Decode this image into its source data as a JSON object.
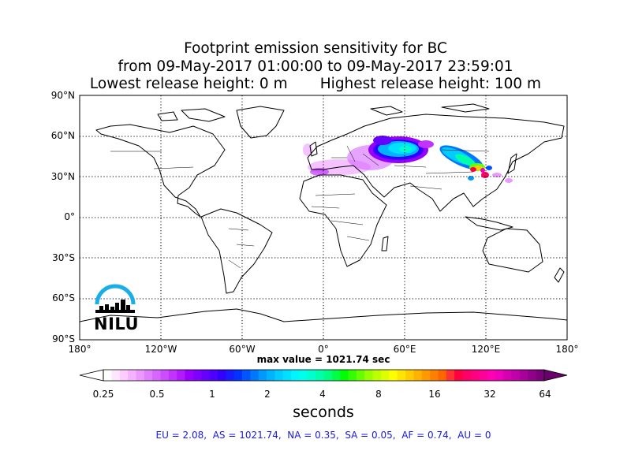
{
  "title": {
    "line1": "Footprint emission sensitivity for BC",
    "line2": "from 09-May-2017 01:00:00 to 09-May-2017 23:59:01",
    "line3": "Lowest release height: 0 m       Highest release height: 100 m"
  },
  "map": {
    "projection": "equirectangular",
    "lat_labels": [
      "90°N",
      "60°N",
      "30°N",
      "0°",
      "30°S",
      "60°S",
      "90°S"
    ],
    "lon_labels": [
      "180°",
      "120°W",
      "60°W",
      "0°",
      "60°E",
      "120°E",
      "180°"
    ],
    "grid": "dotted",
    "colors": {
      "coastline": "#000000",
      "borders": "#000000"
    }
  },
  "max_value": "max value = 1021.74 sec",
  "colorbar": {
    "tick_labels": [
      "0.25",
      "0.5",
      "1",
      "2",
      "4",
      "8",
      "16",
      "32",
      "64"
    ],
    "units": "seconds",
    "colors": [
      "#ffffff",
      "#ffe6ff",
      "#ffccff",
      "#f5b3ff",
      "#eb99ff",
      "#e080ff",
      "#d666ff",
      "#cc4dff",
      "#c233ff",
      "#b31aff",
      "#9900ff",
      "#8000ff",
      "#6600ff",
      "#4d00ff",
      "#3300ff",
      "#1a1aff",
      "#0033ff",
      "#0055ff",
      "#0077ff",
      "#0099ff",
      "#00b3ff",
      "#00ccff",
      "#00e0ff",
      "#00f5ff",
      "#00ffea",
      "#00ffcc",
      "#00ffaa",
      "#00ff80",
      "#00ff44",
      "#00ff00",
      "#33ff00",
      "#66ff00",
      "#99ff00",
      "#bbff00",
      "#ddff00",
      "#ffff00",
      "#ffe600",
      "#ffcc00",
      "#ffb300",
      "#ff9900",
      "#ff8000",
      "#ff6600",
      "#ff3333",
      "#ff0040",
      "#ff0066",
      "#ff0080",
      "#ff0099",
      "#ff00b3",
      "#ee00bb",
      "#d600b3",
      "#c000a8",
      "#a8009a",
      "#90008a",
      "#780078"
    ]
  },
  "nilu_logo_text": "NILU",
  "regions_text": "EU = 2.08,  AS = 1021.74,  NA = 0.35,  SA = 0.05,  AF = 0.74,  AU = 0"
}
